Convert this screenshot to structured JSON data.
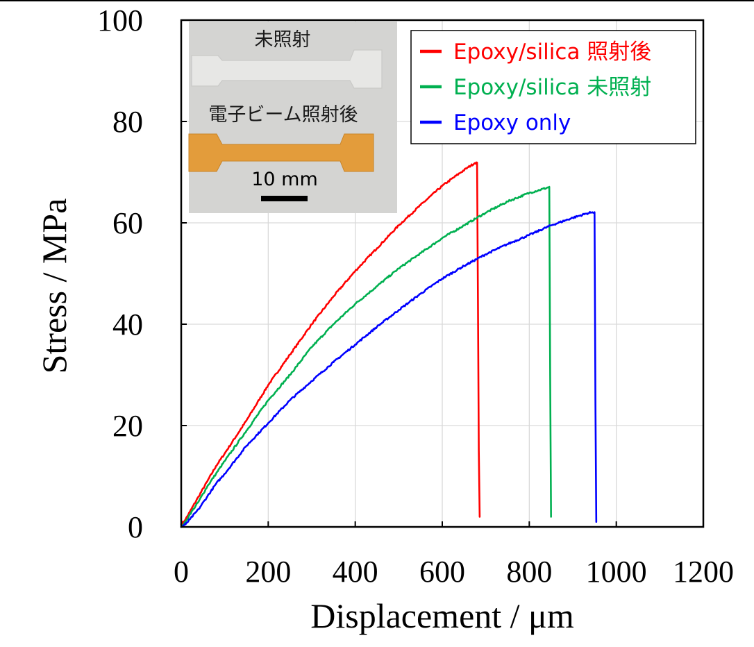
{
  "chart_data": {
    "type": "line",
    "xlabel": "Displacement / μm",
    "ylabel": "Stress / MPa",
    "xlim": [
      0,
      1200
    ],
    "ylim": [
      0,
      100
    ],
    "xticks": [
      "0",
      "200",
      "400",
      "600",
      "800",
      "1000",
      "1200"
    ],
    "yticks": [
      "0",
      "20",
      "40",
      "60",
      "80",
      "100"
    ],
    "grid": true,
    "legend_position": "top-right",
    "series": [
      {
        "name": "Epoxy/silica 照射後",
        "color": "#ff0000",
        "x": [
          0,
          10,
          20,
          40,
          60,
          80,
          100,
          150,
          200,
          250,
          300,
          350,
          400,
          450,
          500,
          550,
          600,
          640,
          660,
          675,
          680,
          682,
          684,
          686
        ],
        "y": [
          0.5,
          1.5,
          3,
          6,
          9,
          12,
          14.5,
          21,
          28,
          34,
          40,
          45.5,
          50.5,
          55,
          59.5,
          63.5,
          67.3,
          69.8,
          71,
          71.8,
          71.9,
          45,
          15,
          2
        ]
      },
      {
        "name": "Epoxy/silica 未照射",
        "color": "#00b050",
        "x": [
          0,
          10,
          20,
          40,
          60,
          80,
          100,
          150,
          200,
          250,
          300,
          350,
          400,
          450,
          500,
          550,
          600,
          650,
          700,
          750,
          800,
          840,
          846,
          848,
          850
        ],
        "y": [
          0,
          1,
          2.5,
          5,
          8,
          10.5,
          13,
          19,
          25,
          30,
          35.5,
          40,
          44,
          47.5,
          51,
          54,
          57,
          59.5,
          62,
          64.2,
          65.9,
          66.9,
          67.1,
          30,
          2
        ]
      },
      {
        "name": "Epoxy only",
        "color": "#0000ff",
        "x": [
          0,
          10,
          20,
          40,
          60,
          80,
          100,
          150,
          200,
          250,
          300,
          350,
          400,
          450,
          500,
          550,
          600,
          650,
          700,
          750,
          800,
          850,
          900,
          930,
          945,
          950,
          952,
          954
        ],
        "y": [
          0,
          0.5,
          1.5,
          3.5,
          6,
          8.5,
          10.5,
          16,
          20.5,
          25,
          28.8,
          32.5,
          36,
          39.5,
          42.8,
          46,
          49,
          51.5,
          53.8,
          55.8,
          57.6,
          59.5,
          61,
          61.8,
          62.1,
          62.1,
          25,
          1
        ]
      }
    ]
  },
  "inset": {
    "label_top": "未照射",
    "label_bottom": "電子ビーム照射後",
    "scale_bar_label": "10 mm",
    "background_color": "#d4d4d2",
    "specimen_top_color": "#e6e6e4",
    "specimen_bottom_color": "#e09a3a"
  }
}
